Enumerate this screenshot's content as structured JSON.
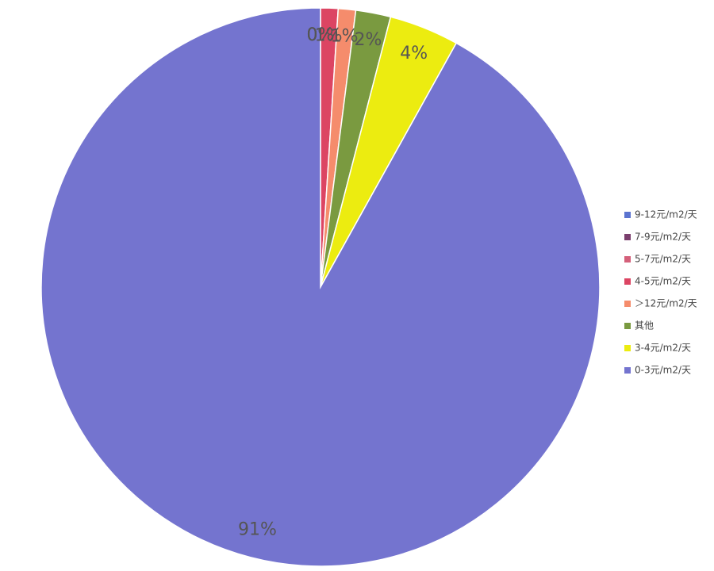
{
  "chart_data": {
    "type": "pie",
    "categories": [
      "9-12元/m2/天",
      "7-9元/m2/天",
      "5-7元/m2/天",
      "4-5元/m2/天",
      "＞12元/m2/天",
      "其他",
      "3-4元/m2/天",
      "0-3元/m2/天"
    ],
    "values": [
      0,
      0,
      0,
      1,
      1,
      2,
      4,
      91
    ],
    "value_labels": [
      "0%",
      "0%",
      "0%",
      "1%",
      "1%",
      "2%",
      "4%",
      "91%"
    ],
    "colors": [
      "#5b74d0",
      "#7b3f6e",
      "#d4607a",
      "#dc4563",
      "#f58c6c",
      "#7a9a40",
      "#ecec10",
      "#7474cf"
    ]
  }
}
